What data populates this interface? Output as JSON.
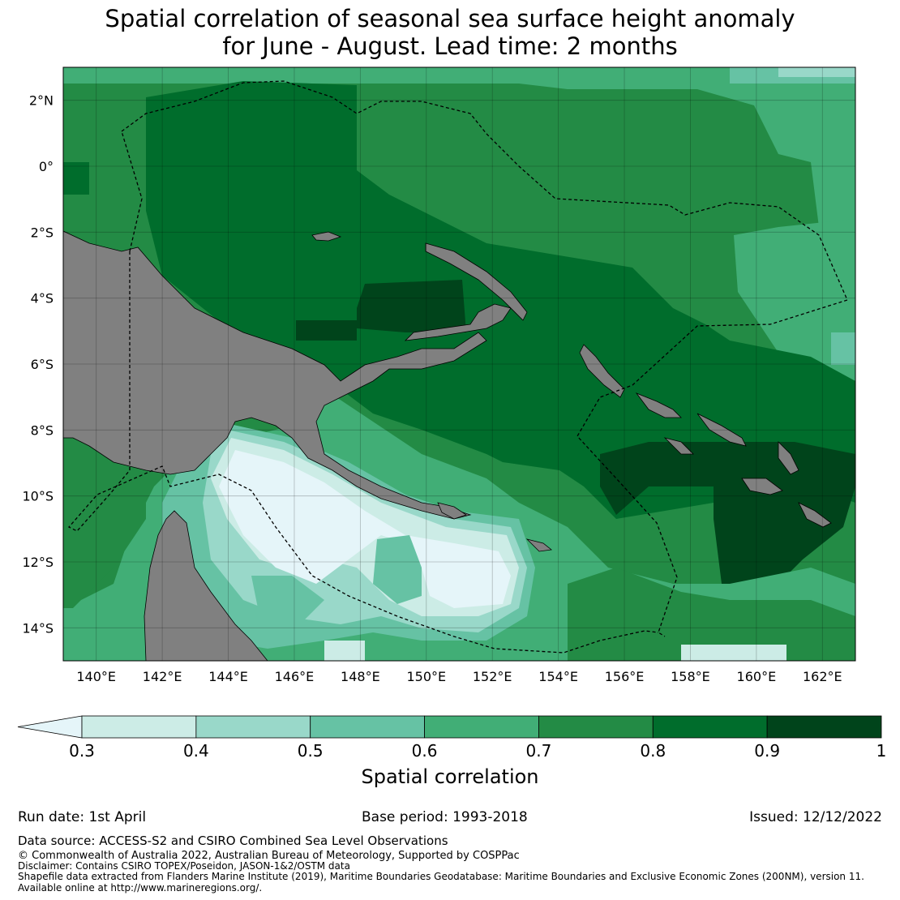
{
  "title": {
    "line1": "Spatial correlation of seasonal sea surface height anomaly",
    "line2": "for June - August. Lead time: 2 months"
  },
  "map": {
    "lon_range": [
      139,
      163
    ],
    "lat_range": [
      -15,
      3
    ],
    "lon_ticks": [
      "140°E",
      "142°E",
      "144°E",
      "146°E",
      "148°E",
      "150°E",
      "152°E",
      "154°E",
      "156°E",
      "158°E",
      "160°E",
      "162°E"
    ],
    "lat_ticks": [
      "2°N",
      "0°",
      "2°S",
      "4°S",
      "6°S",
      "8°S",
      "10°S",
      "12°S",
      "14°S"
    ],
    "land_color": "#808080",
    "eez_boundary_style": "dashed black"
  },
  "colorbar": {
    "label": "Spatial correlation",
    "extend": "min",
    "ticks": [
      "0.3",
      "0.4",
      "0.5",
      "0.6",
      "0.7",
      "0.8",
      "0.9",
      "1"
    ],
    "colors": [
      "#e5f5f9",
      "#ccece6",
      "#99d8c9",
      "#66c2a4",
      "#41ae76",
      "#238b45",
      "#006d2c",
      "#00441b"
    ]
  },
  "footer": {
    "run_date": "Run date: 1st April",
    "base_period": "Base period: 1993-2018",
    "issued": "Issued: 12/12/2022",
    "data_source": "Data source: ACCESS-S2 and CSIRO Combined Sea Level Observations",
    "copyright": "© Commonwealth of Australia 2022, Australian Bureau of Meteorology, Supported by COSPPac",
    "disclaimer": "Disclaimer: Contains CSIRO TOPEX/Poseidon, JASON-1&2/OSTM data",
    "shapefile": "Shapefile data extracted from Flanders Marine Institute (2019), Maritime Boundaries Geodatabase: Maritime Boundaries and Exclusive Economic Zones (200NM), version 11.",
    "available": "Available online at http://www.marineregions.org/."
  }
}
